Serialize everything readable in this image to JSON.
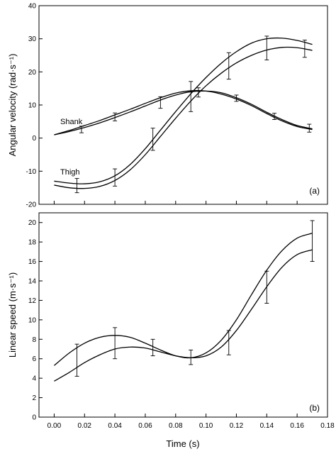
{
  "chart_data": [
    {
      "type": "line",
      "panel_label": "(a)",
      "ylabel": "Angular velocity (rad·s⁻¹)",
      "xlim": [
        -0.01,
        0.18
      ],
      "ylim": [
        -20,
        40
      ],
      "yticks": [
        -20,
        -10,
        0,
        10,
        20,
        30,
        40
      ],
      "grid": false,
      "annotations": [
        "Shank",
        "Thigh"
      ],
      "series": [
        {
          "group": "Shank",
          "x": [
            0.0,
            0.01,
            0.02,
            0.03,
            0.04,
            0.05,
            0.06,
            0.07,
            0.08,
            0.09,
            0.1,
            0.11,
            0.12,
            0.13,
            0.14,
            0.15,
            0.16,
            0.17
          ],
          "values": [
            1.0,
            2.0,
            3.2,
            4.6,
            6.2,
            7.9,
            9.7,
            11.5,
            13.0,
            14.0,
            14.2,
            13.7,
            12.2,
            10.2,
            7.8,
            5.6,
            3.8,
            2.8
          ]
        },
        {
          "group": "Shank",
          "x": [
            0.0,
            0.01,
            0.02,
            0.03,
            0.04,
            0.05,
            0.06,
            0.07,
            0.08,
            0.09,
            0.1,
            0.11,
            0.12,
            0.13,
            0.14,
            0.15,
            0.16,
            0.17
          ],
          "values": [
            1.0,
            2.3,
            3.8,
            5.3,
            7.0,
            8.7,
            10.5,
            12.2,
            13.6,
            14.3,
            14.2,
            13.3,
            11.8,
            9.8,
            7.4,
            5.2,
            3.5,
            2.6
          ]
        },
        {
          "group": "Thigh",
          "x": [
            0.0,
            0.01,
            0.02,
            0.03,
            0.04,
            0.05,
            0.06,
            0.07,
            0.08,
            0.09,
            0.1,
            0.11,
            0.12,
            0.13,
            0.14,
            0.15,
            0.16,
            0.17
          ],
          "values": [
            -13.0,
            -13.6,
            -13.8,
            -13.2,
            -11.4,
            -8.0,
            -3.2,
            2.4,
            8.0,
            13.4,
            18.3,
            22.6,
            26.1,
            28.7,
            30.0,
            30.2,
            29.5,
            28.3
          ]
        },
        {
          "group": "Thigh",
          "x": [
            0.0,
            0.01,
            0.02,
            0.03,
            0.04,
            0.05,
            0.06,
            0.07,
            0.08,
            0.09,
            0.1,
            0.11,
            0.12,
            0.13,
            0.14,
            0.15,
            0.16,
            0.17
          ],
          "values": [
            -14.2,
            -15.0,
            -15.2,
            -14.6,
            -12.8,
            -9.6,
            -5.0,
            0.5,
            6.0,
            11.2,
            15.8,
            19.6,
            22.7,
            25.0,
            26.6,
            27.4,
            27.3,
            26.5
          ]
        }
      ],
      "error_bars": [
        {
          "x": 0.015,
          "low": -16.5,
          "high": -12.2
        },
        {
          "x": 0.04,
          "low": -14.5,
          "high": -9.3
        },
        {
          "x": 0.065,
          "low": -3.7,
          "high": 3.0
        },
        {
          "x": 0.09,
          "low": 8.0,
          "high": 17.1
        },
        {
          "x": 0.115,
          "low": 17.8,
          "high": 25.8
        },
        {
          "x": 0.14,
          "low": 23.6,
          "high": 30.8
        },
        {
          "x": 0.165,
          "low": 24.4,
          "high": 29.6
        },
        {
          "x": 0.018,
          "low": 1.6,
          "high": 3.6
        },
        {
          "x": 0.04,
          "low": 5.2,
          "high": 7.6
        },
        {
          "x": 0.07,
          "low": 9.0,
          "high": 12.5
        },
        {
          "x": 0.095,
          "low": 12.4,
          "high": 15.2
        },
        {
          "x": 0.12,
          "low": 11.1,
          "high": 13.0
        },
        {
          "x": 0.145,
          "low": 5.6,
          "high": 7.5
        },
        {
          "x": 0.168,
          "low": 1.8,
          "high": 4.2
        }
      ]
    },
    {
      "type": "line",
      "panel_label": "(b)",
      "xlabel": "Time (s)",
      "ylabel": "Linear speed (m·s⁻¹)",
      "xlim": [
        -0.01,
        0.18
      ],
      "ylim": [
        0,
        21
      ],
      "yticks": [
        0,
        2,
        4,
        6,
        8,
        10,
        12,
        14,
        16,
        18,
        20
      ],
      "xticks": [
        "0.00",
        "0.02",
        "0.04",
        "0.06",
        "0.08",
        "0.10",
        "0.12",
        "0.14",
        "0.16",
        "0.18"
      ],
      "grid": false,
      "series": [
        {
          "x": [
            0.0,
            0.01,
            0.02,
            0.03,
            0.04,
            0.05,
            0.06,
            0.07,
            0.08,
            0.09,
            0.1,
            0.11,
            0.12,
            0.13,
            0.14,
            0.15,
            0.16,
            0.17
          ],
          "values": [
            5.3,
            6.6,
            7.6,
            8.2,
            8.4,
            8.2,
            7.6,
            6.9,
            6.3,
            6.1,
            6.6,
            7.9,
            10.0,
            12.6,
            15.1,
            17.1,
            18.4,
            18.9
          ]
        },
        {
          "x": [
            0.0,
            0.01,
            0.02,
            0.03,
            0.04,
            0.05,
            0.06,
            0.07,
            0.08,
            0.09,
            0.1,
            0.11,
            0.12,
            0.13,
            0.14,
            0.15,
            0.16,
            0.17
          ],
          "values": [
            3.7,
            4.6,
            5.6,
            6.4,
            7.0,
            7.2,
            7.1,
            6.7,
            6.3,
            6.1,
            6.3,
            7.2,
            8.9,
            11.1,
            13.4,
            15.4,
            16.7,
            17.2
          ]
        }
      ],
      "error_bars": [
        {
          "x": 0.015,
          "low": 4.2,
          "high": 7.5
        },
        {
          "x": 0.04,
          "low": 6.0,
          "high": 9.2
        },
        {
          "x": 0.065,
          "low": 6.3,
          "high": 8.0
        },
        {
          "x": 0.09,
          "low": 5.4,
          "high": 6.9
        },
        {
          "x": 0.115,
          "low": 6.4,
          "high": 8.9
        },
        {
          "x": 0.14,
          "low": 11.7,
          "high": 15.0
        },
        {
          "x": 0.17,
          "low": 16.0,
          "high": 20.2
        }
      ]
    }
  ]
}
